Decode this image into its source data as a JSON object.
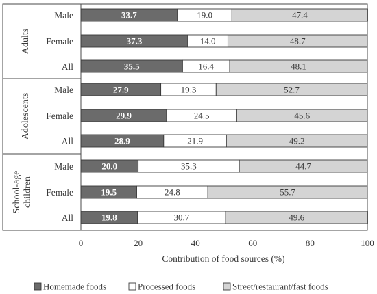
{
  "chart_data": {
    "type": "bar",
    "orientation": "horizontal",
    "stacked": true,
    "xlabel": "Contribution of food sources (%)",
    "xlim": [
      0,
      100
    ],
    "xticks": [
      "0",
      "20",
      "40",
      "60",
      "80",
      "100"
    ],
    "legend_position": "bottom",
    "groups": [
      {
        "name": "Adults",
        "categories": [
          "Male",
          "Female",
          "All"
        ]
      },
      {
        "name": "Adolescents",
        "categories": [
          "Male",
          "Female",
          "All"
        ]
      },
      {
        "name": "School-age children",
        "categories": [
          "Male",
          "Female",
          "All"
        ]
      }
    ],
    "series": [
      {
        "name": "Homemade foods",
        "color": "#6b6b6b",
        "values": [
          33.7,
          37.3,
          35.5,
          27.9,
          29.9,
          28.9,
          20.0,
          19.5,
          19.8
        ],
        "labels": [
          "33.7",
          "37.3",
          "35.5",
          "27.9",
          "29.9",
          "28.9",
          "20.0",
          "19.5",
          "19.8"
        ]
      },
      {
        "name": "Processed foods",
        "color": "#ffffff",
        "values": [
          19.0,
          14.0,
          16.4,
          19.3,
          24.5,
          21.9,
          35.3,
          24.8,
          30.7
        ],
        "labels": [
          "19.0",
          "14.0",
          "16.4",
          "19.3",
          "24.5",
          "21.9",
          "35.3",
          "24.8",
          "30.7"
        ]
      },
      {
        "name": "Street/restaurant/fast foods",
        "color": "#d4d4d4",
        "values": [
          47.4,
          48.7,
          48.1,
          52.7,
          45.6,
          49.2,
          44.7,
          55.7,
          49.6
        ],
        "labels": [
          "47.4",
          "48.7",
          "48.1",
          "52.7",
          "45.6",
          "49.2",
          "44.7",
          "55.7",
          "49.6"
        ]
      }
    ]
  }
}
